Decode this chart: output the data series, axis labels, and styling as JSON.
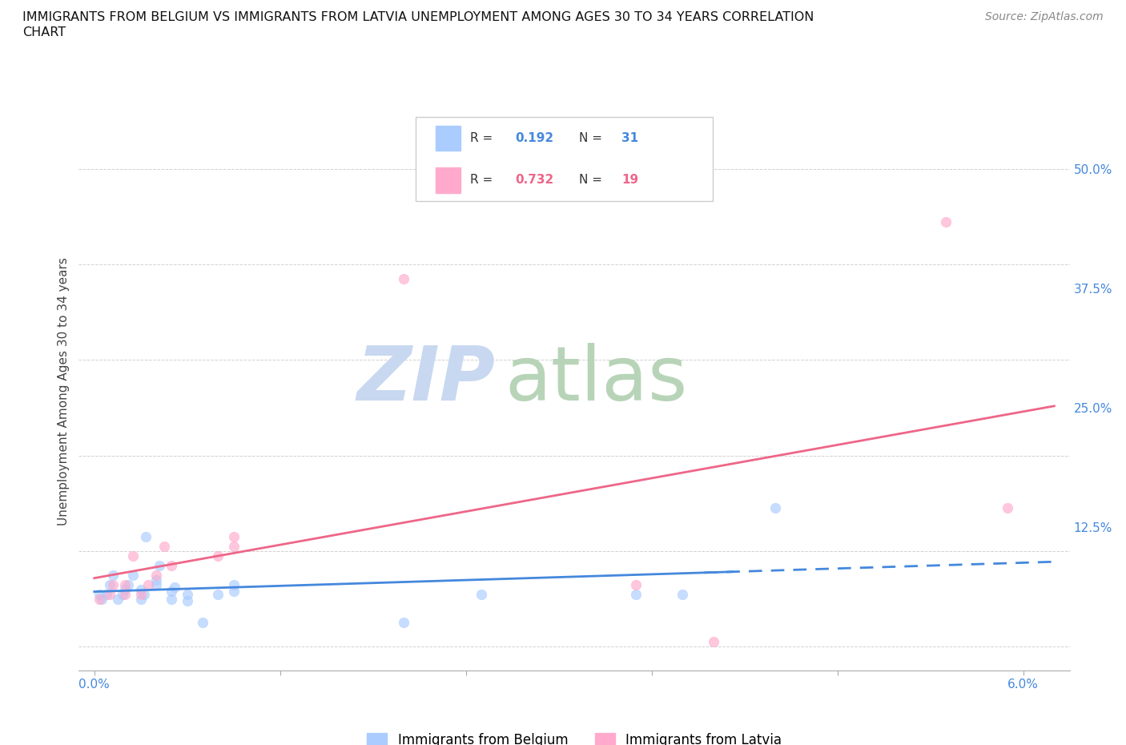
{
  "title_line1": "IMMIGRANTS FROM BELGIUM VS IMMIGRANTS FROM LATVIA UNEMPLOYMENT AMONG AGES 30 TO 34 YEARS CORRELATION",
  "title_line2": "CHART",
  "source_text": "Source: ZipAtlas.com",
  "ylabel": "Unemployment Among Ages 30 to 34 years",
  "xlim": [
    -0.001,
    0.063
  ],
  "ylim": [
    -0.025,
    0.56
  ],
  "xticks": [
    0.0,
    0.012,
    0.024,
    0.036,
    0.048,
    0.06
  ],
  "xticklabels": [
    "0.0%",
    "",
    "",
    "",
    "",
    "6.0%"
  ],
  "yticks": [
    0.0,
    0.125,
    0.25,
    0.375,
    0.5
  ],
  "yticklabels": [
    "",
    "12.5%",
    "25.0%",
    "37.5%",
    "50.0%"
  ],
  "grid_color": "#cccccc",
  "background_color": "#ffffff",
  "belgium_color": "#aaccff",
  "latvia_color": "#ffaacc",
  "belgium_line_color": "#4488dd",
  "latvia_line_color": "#ee6688",
  "belgium_R": 0.192,
  "belgium_N": 31,
  "latvia_R": 0.732,
  "latvia_N": 19,
  "belgium_x": [
    0.0003,
    0.0005,
    0.0008,
    0.001,
    0.0012,
    0.0015,
    0.0018,
    0.002,
    0.0022,
    0.0025,
    0.003,
    0.003,
    0.0032,
    0.0033,
    0.004,
    0.004,
    0.0042,
    0.005,
    0.005,
    0.0052,
    0.006,
    0.006,
    0.007,
    0.008,
    0.009,
    0.009,
    0.02,
    0.025,
    0.035,
    0.038,
    0.044
  ],
  "belgium_y": [
    0.055,
    0.05,
    0.055,
    0.065,
    0.075,
    0.05,
    0.055,
    0.06,
    0.065,
    0.075,
    0.05,
    0.06,
    0.055,
    0.115,
    0.065,
    0.07,
    0.085,
    0.05,
    0.058,
    0.062,
    0.048,
    0.055,
    0.025,
    0.055,
    0.058,
    0.065,
    0.025,
    0.055,
    0.055,
    0.055,
    0.145
  ],
  "latvia_x": [
    0.0003,
    0.001,
    0.0012,
    0.002,
    0.002,
    0.0025,
    0.003,
    0.0035,
    0.004,
    0.0045,
    0.005,
    0.008,
    0.009,
    0.009,
    0.02,
    0.035,
    0.04,
    0.055,
    0.059
  ],
  "latvia_y": [
    0.05,
    0.055,
    0.065,
    0.055,
    0.065,
    0.095,
    0.055,
    0.065,
    0.075,
    0.105,
    0.085,
    0.095,
    0.105,
    0.115,
    0.385,
    0.065,
    0.005,
    0.445,
    0.145
  ],
  "watermark_zip": "ZIP",
  "watermark_atlas": "atlas",
  "watermark_zip_color": "#c8d8f0",
  "watermark_atlas_color": "#b8d4b8"
}
